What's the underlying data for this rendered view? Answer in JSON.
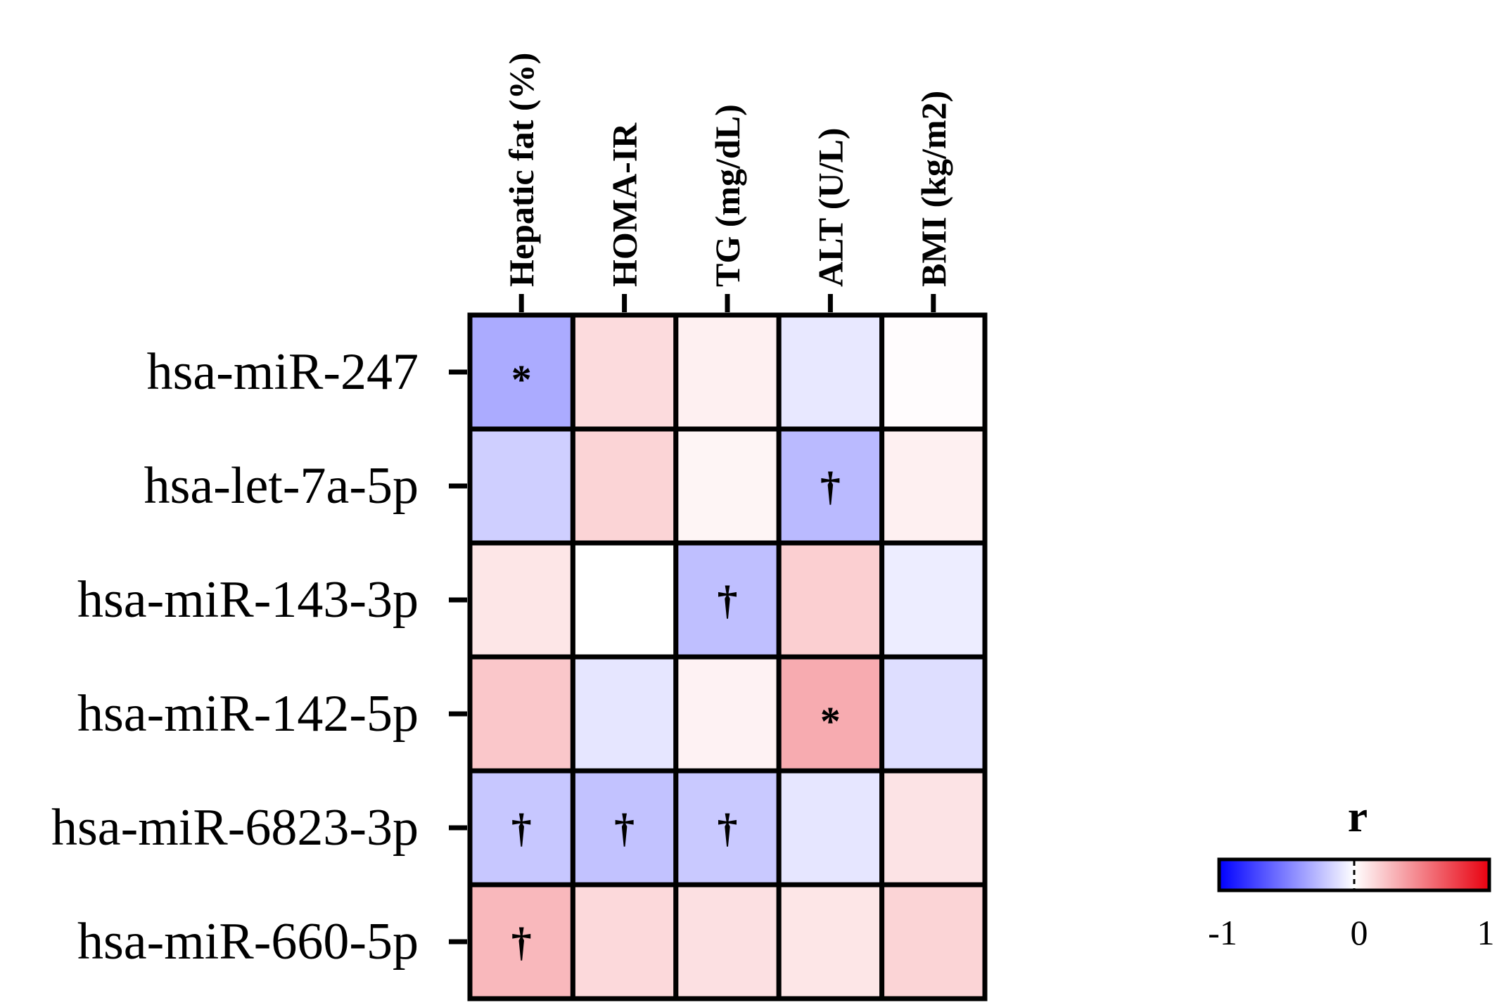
{
  "chart_data": {
    "type": "heatmap",
    "rows": [
      "hsa-miR-247",
      "hsa-let-7a-5p",
      "hsa-miR-143-3p",
      "hsa-miR-142-5p",
      "hsa-miR-6823-3p",
      "hsa-miR-660-5p"
    ],
    "columns": [
      "Hepatic fat (%)",
      "HOMA-IR",
      "TG (mg/dL)",
      "ALT (U/L)",
      "BMI (kg/m2)"
    ],
    "values": [
      [
        -0.33,
        0.14,
        0.06,
        -0.09,
        0.01
      ],
      [
        -0.19,
        0.17,
        0.04,
        -0.27,
        0.06
      ],
      [
        0.1,
        0.0,
        -0.25,
        0.19,
        -0.07
      ],
      [
        0.22,
        -0.1,
        0.05,
        0.33,
        -0.13
      ],
      [
        -0.22,
        -0.24,
        -0.21,
        -0.1,
        0.11
      ],
      [
        0.28,
        0.15,
        0.12,
        0.1,
        0.17
      ]
    ],
    "markers": [
      [
        "*",
        "",
        "",
        "",
        ""
      ],
      [
        "",
        "",
        "",
        "†",
        ""
      ],
      [
        "",
        "",
        "†",
        "",
        ""
      ],
      [
        "",
        "",
        "",
        "*",
        ""
      ],
      [
        "†",
        "†",
        "†",
        "",
        ""
      ],
      [
        "†",
        "",
        "",
        "",
        ""
      ]
    ],
    "legend": {
      "title": "r",
      "min": -1,
      "max": 1,
      "ticks": [
        "-1",
        "0",
        "1"
      ],
      "colors": {
        "negative": "#0000ff",
        "zero": "#ffffff",
        "positive": "#e8000f"
      }
    },
    "grid_color": "#000000"
  }
}
